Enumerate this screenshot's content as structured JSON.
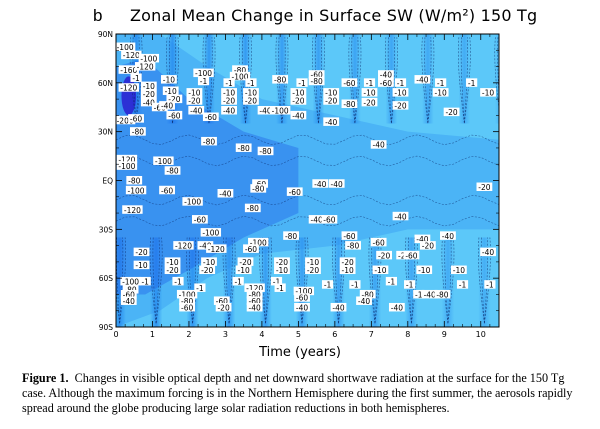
{
  "panel_letter": "b",
  "caption": {
    "label": "Figure 1.",
    "text": "Changes in visible optical depth and net downward shortwave radiation at the surface for the 150 Tg case. Although the maximum forcing is in the Northern Hemisphere during the first summer, the aerosols rapidly spread around the globe producing large solar radiation reductions in both hemispheres."
  },
  "chart_data": {
    "type": "heatmap",
    "title": "Zonal Mean Change in Surface SW (W/m²) 150 Tg",
    "xlabel": "Time (years)",
    "ylabel": "",
    "xlim": [
      0,
      10.5
    ],
    "ylim": [
      -90,
      90
    ],
    "x_ticks": [
      0,
      1,
      2,
      3,
      4,
      5,
      6,
      7,
      8,
      9,
      10
    ],
    "y_ticks": [
      {
        "value": 90,
        "label": "90N"
      },
      {
        "value": 60,
        "label": "60N"
      },
      {
        "value": 30,
        "label": "30N"
      },
      {
        "value": 0,
        "label": "EQ"
      },
      {
        "value": -30,
        "label": "30S"
      },
      {
        "value": -60,
        "label": "60S"
      },
      {
        "value": -90,
        "label": "90S"
      }
    ],
    "contour_interval": 20,
    "colors": {
      "max_reduction": "#2a1fd0",
      "strong": "#1e5ee8",
      "moderate": "#2a8ff0",
      "weak": "#39b6f6",
      "background": "#5cc8f9"
    },
    "contour_labels": [
      {
        "x": 0.25,
        "y": 82,
        "v": "-100"
      },
      {
        "x": 0.42,
        "y": 77,
        "v": "-120"
      },
      {
        "x": 0.35,
        "y": 68,
        "v": "-160"
      },
      {
        "x": 0.55,
        "y": 63,
        "v": "-1"
      },
      {
        "x": 0.9,
        "y": 75,
        "v": "-100"
      },
      {
        "x": 0.8,
        "y": 70,
        "v": "-120"
      },
      {
        "x": 0.35,
        "y": 57,
        "v": "-120"
      },
      {
        "x": 0.25,
        "y": 37,
        "v": "-200"
      },
      {
        "x": 0.55,
        "y": 38,
        "v": "-60"
      },
      {
        "x": 0.6,
        "y": 30,
        "v": "-80"
      },
      {
        "x": 0.9,
        "y": 58,
        "v": "-10"
      },
      {
        "x": 0.9,
        "y": 53,
        "v": "-20"
      },
      {
        "x": 0.9,
        "y": 48,
        "v": "-40"
      },
      {
        "x": 1.2,
        "y": 45,
        "v": "-60"
      },
      {
        "x": 1.5,
        "y": 55,
        "v": "-10"
      },
      {
        "x": 1.6,
        "y": 50,
        "v": "-20"
      },
      {
        "x": 1.4,
        "y": 46,
        "v": "-40"
      },
      {
        "x": 1.6,
        "y": 40,
        "v": "-60"
      },
      {
        "x": 1.45,
        "y": 62,
        "v": "-10"
      },
      {
        "x": 2.4,
        "y": 66,
        "v": "-100"
      },
      {
        "x": 2.4,
        "y": 61,
        "v": "-1"
      },
      {
        "x": 2.15,
        "y": 54,
        "v": "-10"
      },
      {
        "x": 2.15,
        "y": 49,
        "v": "-20"
      },
      {
        "x": 2.2,
        "y": 43,
        "v": "-40"
      },
      {
        "x": 2.6,
        "y": 39,
        "v": "-60"
      },
      {
        "x": 3.4,
        "y": 68,
        "v": "-80"
      },
      {
        "x": 3.4,
        "y": 64,
        "v": "-100"
      },
      {
        "x": 3.1,
        "y": 60,
        "v": "-1"
      },
      {
        "x": 3.1,
        "y": 54,
        "v": "-10"
      },
      {
        "x": 3.1,
        "y": 49,
        "v": "-20"
      },
      {
        "x": 3.1,
        "y": 43,
        "v": "-40"
      },
      {
        "x": 3.7,
        "y": 60,
        "v": "-1"
      },
      {
        "x": 3.7,
        "y": 54,
        "v": "-10"
      },
      {
        "x": 3.7,
        "y": 49,
        "v": "-20"
      },
      {
        "x": 4.1,
        "y": 43,
        "v": "-40"
      },
      {
        "x": 4.5,
        "y": 43,
        "v": "-100"
      },
      {
        "x": 4.5,
        "y": 62,
        "v": "-80"
      },
      {
        "x": 5.1,
        "y": 60,
        "v": "-1"
      },
      {
        "x": 5.0,
        "y": 54,
        "v": "-10"
      },
      {
        "x": 5.0,
        "y": 49,
        "v": "-20"
      },
      {
        "x": 5.0,
        "y": 40,
        "v": "-40"
      },
      {
        "x": 5.5,
        "y": 65,
        "v": "-60"
      },
      {
        "x": 5.5,
        "y": 61,
        "v": "-80"
      },
      {
        "x": 5.9,
        "y": 54,
        "v": "-10"
      },
      {
        "x": 5.9,
        "y": 49,
        "v": "-20"
      },
      {
        "x": 5.9,
        "y": 36,
        "v": "-40"
      },
      {
        "x": 6.4,
        "y": 60,
        "v": "-60"
      },
      {
        "x": 6.4,
        "y": 47,
        "v": "-80"
      },
      {
        "x": 6.95,
        "y": 60,
        "v": "-1"
      },
      {
        "x": 6.95,
        "y": 54,
        "v": "-10"
      },
      {
        "x": 6.95,
        "y": 48,
        "v": "-20"
      },
      {
        "x": 7.4,
        "y": 65,
        "v": "-40"
      },
      {
        "x": 7.4,
        "y": 60,
        "v": "-60"
      },
      {
        "x": 7.8,
        "y": 60,
        "v": "-1"
      },
      {
        "x": 7.8,
        "y": 54,
        "v": "-10"
      },
      {
        "x": 7.8,
        "y": 46,
        "v": "-20"
      },
      {
        "x": 8.4,
        "y": 62,
        "v": "-40"
      },
      {
        "x": 8.9,
        "y": 60,
        "v": "-1"
      },
      {
        "x": 8.9,
        "y": 54,
        "v": "-10"
      },
      {
        "x": 9.2,
        "y": 42,
        "v": "-20"
      },
      {
        "x": 9.75,
        "y": 60,
        "v": "-1"
      },
      {
        "x": 10.2,
        "y": 54,
        "v": "-10"
      },
      {
        "x": 2.55,
        "y": 24,
        "v": "-80"
      },
      {
        "x": 3.5,
        "y": 20,
        "v": "-80"
      },
      {
        "x": 4.1,
        "y": 18,
        "v": "-80"
      },
      {
        "x": 0.3,
        "y": 13,
        "v": "-120"
      },
      {
        "x": 0.3,
        "y": 9,
        "v": "-100"
      },
      {
        "x": 1.3,
        "y": 12,
        "v": "-100"
      },
      {
        "x": 1.55,
        "y": 6,
        "v": "-80"
      },
      {
        "x": 7.2,
        "y": 22,
        "v": "-40"
      },
      {
        "x": 0.5,
        "y": 0,
        "v": "-80"
      },
      {
        "x": 0.55,
        "y": -6,
        "v": "-100"
      },
      {
        "x": 1.4,
        "y": -6,
        "v": "-60"
      },
      {
        "x": 2.1,
        "y": -13,
        "v": "-100"
      },
      {
        "x": 3.0,
        "y": -8,
        "v": "-40"
      },
      {
        "x": 3.95,
        "y": -2,
        "v": "-60"
      },
      {
        "x": 3.9,
        "y": -5,
        "v": "-80"
      },
      {
        "x": 5.6,
        "y": -2,
        "v": "-40"
      },
      {
        "x": 6.05,
        "y": -2,
        "v": "-40"
      },
      {
        "x": 4.9,
        "y": -7,
        "v": "-60"
      },
      {
        "x": 10.1,
        "y": -4,
        "v": "-20"
      },
      {
        "x": 0.45,
        "y": -18,
        "v": "-120"
      },
      {
        "x": 2.3,
        "y": -24,
        "v": "-60"
      },
      {
        "x": 3.75,
        "y": -17,
        "v": "-80"
      },
      {
        "x": 5.5,
        "y": -24,
        "v": "-40"
      },
      {
        "x": 5.85,
        "y": -24,
        "v": "-60"
      },
      {
        "x": 7.8,
        "y": -22,
        "v": "-40"
      },
      {
        "x": 2.6,
        "y": -32,
        "v": "-100"
      },
      {
        "x": 3.9,
        "y": -38,
        "v": "-100"
      },
      {
        "x": 1.85,
        "y": -40,
        "v": "-120"
      },
      {
        "x": 2.45,
        "y": -40,
        "v": "-40"
      },
      {
        "x": 2.75,
        "y": -42,
        "v": "-120"
      },
      {
        "x": 3.7,
        "y": -42,
        "v": "-60"
      },
      {
        "x": 4.8,
        "y": -34,
        "v": "-80"
      },
      {
        "x": 6.4,
        "y": -34,
        "v": "-60"
      },
      {
        "x": 6.5,
        "y": -40,
        "v": "-80"
      },
      {
        "x": 7.2,
        "y": -38,
        "v": "-60"
      },
      {
        "x": 8.4,
        "y": -36,
        "v": "-40"
      },
      {
        "x": 8.55,
        "y": -40,
        "v": "-20"
      },
      {
        "x": 9.1,
        "y": -34,
        "v": "-40"
      },
      {
        "x": 10.2,
        "y": -44,
        "v": "-40"
      },
      {
        "x": 0.7,
        "y": -44,
        "v": "-20"
      },
      {
        "x": 1.55,
        "y": -50,
        "v": "-10"
      },
      {
        "x": 0.7,
        "y": -52,
        "v": "-10"
      },
      {
        "x": 1.55,
        "y": -55,
        "v": "-20"
      },
      {
        "x": 2.55,
        "y": -50,
        "v": "-10"
      },
      {
        "x": 2.5,
        "y": -55,
        "v": "-20"
      },
      {
        "x": 3.55,
        "y": -50,
        "v": "-20"
      },
      {
        "x": 3.5,
        "y": -55,
        "v": "-10"
      },
      {
        "x": 4.55,
        "y": -50,
        "v": "-20"
      },
      {
        "x": 4.55,
        "y": -55,
        "v": "-10"
      },
      {
        "x": 5.4,
        "y": -50,
        "v": "-10"
      },
      {
        "x": 5.4,
        "y": -55,
        "v": "-20"
      },
      {
        "x": 6.35,
        "y": -50,
        "v": "-20"
      },
      {
        "x": 6.35,
        "y": -55,
        "v": "-10"
      },
      {
        "x": 7.35,
        "y": -46,
        "v": "-20"
      },
      {
        "x": 7.25,
        "y": -55,
        "v": "-10"
      },
      {
        "x": 7.9,
        "y": -46,
        "v": "-20"
      },
      {
        "x": 8.1,
        "y": -46,
        "v": "-60"
      },
      {
        "x": 8.45,
        "y": -55,
        "v": "-10"
      },
      {
        "x": 9.4,
        "y": -55,
        "v": "-10"
      },
      {
        "x": 0.4,
        "y": -62,
        "v": "-100"
      },
      {
        "x": 0.4,
        "y": -67,
        "v": "-80"
      },
      {
        "x": 0.35,
        "y": -70,
        "v": "-60"
      },
      {
        "x": 0.35,
        "y": -74,
        "v": "-40"
      },
      {
        "x": 0.8,
        "y": -62,
        "v": "-1"
      },
      {
        "x": 1.95,
        "y": -70,
        "v": "-100"
      },
      {
        "x": 1.95,
        "y": -74,
        "v": "-80"
      },
      {
        "x": 1.95,
        "y": -78,
        "v": "-60"
      },
      {
        "x": 1.7,
        "y": -62,
        "v": "-1"
      },
      {
        "x": 2.3,
        "y": -66,
        "v": "-1"
      },
      {
        "x": 2.9,
        "y": -74,
        "v": "-60"
      },
      {
        "x": 2.95,
        "y": -78,
        "v": "-20"
      },
      {
        "x": 3.8,
        "y": -66,
        "v": "-120"
      },
      {
        "x": 3.8,
        "y": -70,
        "v": "-80"
      },
      {
        "x": 3.8,
        "y": -74,
        "v": "-60"
      },
      {
        "x": 3.8,
        "y": -78,
        "v": "-40"
      },
      {
        "x": 3.35,
        "y": -62,
        "v": "-1"
      },
      {
        "x": 4.4,
        "y": -62,
        "v": "-1"
      },
      {
        "x": 4.5,
        "y": -66,
        "v": "-1"
      },
      {
        "x": 5.15,
        "y": -68,
        "v": "-100"
      },
      {
        "x": 5.1,
        "y": -72,
        "v": "-60"
      },
      {
        "x": 5.1,
        "y": -78,
        "v": "-40"
      },
      {
        "x": 5.8,
        "y": -64,
        "v": "-1"
      },
      {
        "x": 6.1,
        "y": -78,
        "v": "-40"
      },
      {
        "x": 6.55,
        "y": -64,
        "v": "-1"
      },
      {
        "x": 6.9,
        "y": -70,
        "v": "-80"
      },
      {
        "x": 6.8,
        "y": -74,
        "v": "-40"
      },
      {
        "x": 7.55,
        "y": -62,
        "v": "-1"
      },
      {
        "x": 7.7,
        "y": -78,
        "v": "-40"
      },
      {
        "x": 8.05,
        "y": -64,
        "v": "-1"
      },
      {
        "x": 8.3,
        "y": -70,
        "v": "-1"
      },
      {
        "x": 8.6,
        "y": -70,
        "v": "-40"
      },
      {
        "x": 8.95,
        "y": -70,
        "v": "-80"
      },
      {
        "x": 9.5,
        "y": -64,
        "v": "-1"
      },
      {
        "x": 10.25,
        "y": -64,
        "v": "-1"
      }
    ]
  }
}
